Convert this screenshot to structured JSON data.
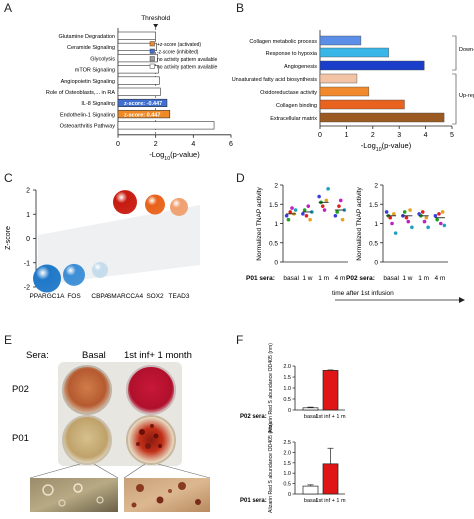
{
  "panels": {
    "A": "A",
    "B": "B",
    "C": "C",
    "D": "D",
    "E": "E",
    "F": "F"
  },
  "chart_data": [
    {
      "panel": "A",
      "type": "bar",
      "orientation": "horizontal",
      "categories": [
        "Glutamine Degradation",
        "Ceramide Signaling",
        "Glycolysis",
        "mTOR Signaling",
        "Angiopoietin Signaling",
        "Role of Osteoblasts,... in RA",
        "IL-8 Signaling",
        "Endothelin-1 Signaling",
        "Osteoarthritis Pathway"
      ],
      "values": [
        2.0,
        2.05,
        2.1,
        2.15,
        2.2,
        2.25,
        2.6,
        2.75,
        5.1
      ],
      "bar_status": [
        "none",
        "none",
        "none",
        "none",
        "none",
        "none",
        "inhibited",
        "activated",
        "none"
      ],
      "bar_labels": [
        "",
        "",
        "",
        "",
        "",
        "",
        "z-score: -0.447",
        "z-score: 0.447",
        ""
      ],
      "threshold_label": "Threshold",
      "threshold_value": 2,
      "xlabel": "-Log10(p-value)",
      "xticks": [
        "0",
        "2",
        "4",
        "6"
      ],
      "xlim": [
        0,
        6
      ],
      "legend": [
        "+z-score (activated)",
        "-z-score (inhibited)",
        "no activity pattern available",
        "no activity pattern available"
      ],
      "colors": {
        "activated": "#f08a24",
        "inhibited": "#3f6fd1",
        "none": "#ffffff",
        "gray": "#a0a0a0"
      }
    },
    {
      "panel": "B",
      "type": "bar",
      "orientation": "horizontal",
      "categories": [
        "Collagen metabolic process",
        "Response to hypoxia",
        "Angiogenesis",
        "Unsaturated fatty acid biosynthesis",
        "Oxidoreductase activity",
        "Collagen binding",
        "Extracellular matrix"
      ],
      "values": [
        1.55,
        2.6,
        3.95,
        1.4,
        1.85,
        3.2,
        4.7
      ],
      "bar_colors": [
        "#5b8ee6",
        "#39b6e8",
        "#1a3ec9",
        "#f3c3a6",
        "#f08a2c",
        "#e8631f",
        "#9a5a22"
      ],
      "groups": [
        "Down-regulated genes",
        "Up-regulated genes"
      ],
      "xlabel": "-Log10(p-value)",
      "xticks": [
        "0",
        "1",
        "2",
        "3",
        "4",
        "5"
      ],
      "xlim": [
        0,
        5
      ]
    },
    {
      "panel": "C",
      "type": "scatter",
      "categories": [
        "PPARGC1A",
        "FOS",
        "CBPA",
        "SMARCCA4",
        "SOX2",
        "TEAD3"
      ],
      "values": [
        -1.65,
        -1.5,
        -1.3,
        1.5,
        1.4,
        1.3
      ],
      "sphere_colors": [
        "#1f78c8",
        "#3c8ed6",
        "#c4dcec",
        "#c81a10",
        "#e8621a",
        "#f0a070"
      ],
      "ylabel": "Z-score",
      "yticks": [
        "2",
        "1",
        "0",
        "-1",
        "-2"
      ],
      "ylim": [
        -2,
        2
      ]
    },
    {
      "panel": "D",
      "type": "scatter",
      "ylabel": "Normalized TNAP activity",
      "yticks": [
        "0",
        "0.5",
        "1",
        "1.5",
        "2"
      ],
      "ylim": [
        0,
        2
      ],
      "categories": [
        "basal",
        "1 w",
        "1 m",
        "4 m"
      ],
      "groups": [
        {
          "name": "P01 sera:",
          "values": [
            [
              1.2,
              1.1,
              1.3,
              1.4,
              1.25,
              1.35
            ],
            [
              1.25,
              1.35,
              1.2,
              1.45,
              1.1,
              1.3
            ],
            [
              1.7,
              1.55,
              1.45,
              1.35,
              1.6,
              1.9
            ],
            [
              1.2,
              1.3,
              1.45,
              1.6,
              1.1,
              1.35
            ]
          ],
          "means": [
            1.25,
            1.3,
            1.55,
            1.35
          ]
        },
        {
          "name": "P02 sera:",
          "values": [
            [
              1.3,
              1.2,
              1.15,
              1.0,
              1.25,
              0.75
            ],
            [
              1.2,
              1.3,
              1.15,
              1.05,
              1.35,
              0.9
            ],
            [
              1.25,
              1.2,
              1.3,
              1.05,
              1.15,
              0.9
            ],
            [
              1.2,
              1.1,
              1.25,
              1.0,
              1.3,
              0.95
            ]
          ],
          "means": [
            1.2,
            1.2,
            1.2,
            1.15
          ]
        }
      ],
      "point_colors": [
        "#3c3ce0",
        "#20a020",
        "#e02020",
        "#c020c0",
        "#e8a020",
        "#20a0c0",
        "#222222"
      ],
      "time_label": "time after 1st infusion"
    },
    {
      "panel": "F",
      "type": "bar",
      "ylabel": "Alizarin Red S abundance OD405 (nm)",
      "groups": [
        {
          "name": "P02 sera:",
          "categories": [
            "basal",
            "1st inf + 1 m"
          ],
          "values": [
            0.1,
            1.8
          ],
          "errors": [
            0.03,
            0.02
          ],
          "ylim": [
            0,
            2
          ],
          "yticks": [
            "0",
            "0.5",
            "1.0",
            "1.5",
            "2.0"
          ]
        },
        {
          "name": "P01 sera:",
          "categories": [
            "basal",
            "1st inf + 1 m"
          ],
          "values": [
            0.38,
            1.45
          ],
          "errors": [
            0.06,
            0.75
          ],
          "ylim": [
            0,
            2.5
          ],
          "yticks": [
            "0",
            "0.5",
            "1.0",
            "1.5",
            "2.0",
            "2.5"
          ]
        }
      ],
      "colors": {
        "basal": "#ffffff",
        "treated": "#e01515"
      }
    }
  ],
  "panel_e": {
    "sera_label": "Sera:",
    "col_basal": "Basal",
    "col_inf": "1st inf+ 1 month",
    "row_p02": "P02",
    "row_p01": "P01"
  }
}
